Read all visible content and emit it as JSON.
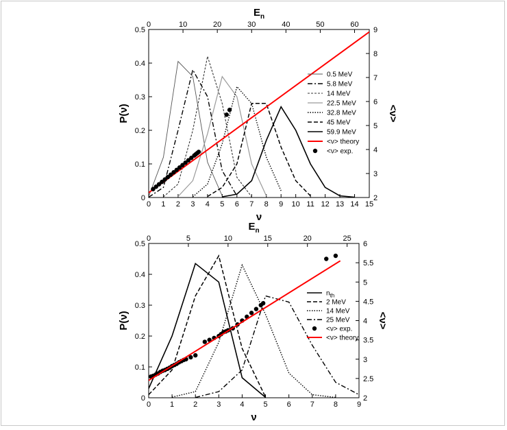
{
  "chart_data": [
    {
      "type": "line",
      "id": "top",
      "xlabel": "ν",
      "ylabel": "P(ν)",
      "x2label": "E",
      "x2label_sub": "n",
      "y2label": "<ν>",
      "xlim": [
        0,
        15
      ],
      "ylim": [
        0,
        0.5
      ],
      "x2lim": [
        0,
        64.29
      ],
      "y2lim": [
        2,
        9
      ],
      "xticks": [
        0,
        1,
        2,
        3,
        4,
        5,
        6,
        7,
        8,
        9,
        10,
        11,
        12,
        13,
        14,
        15
      ],
      "yticks": [
        0,
        0.1,
        0.2,
        0.3,
        0.4,
        0.5
      ],
      "x2ticks": [
        0,
        10,
        20,
        30,
        40,
        50,
        60
      ],
      "y2ticks": [
        2,
        3,
        4,
        5,
        6,
        7,
        8,
        9
      ],
      "legend": "right",
      "series": [
        {
          "name": "0.5 MeV",
          "style": "thin",
          "x": [
            0,
            1,
            2,
            3,
            4,
            5
          ],
          "y": [
            0.003,
            0.12,
            0.405,
            0.36,
            0.105,
            0.005
          ]
        },
        {
          "name": "5.8 MeV",
          "style": "dashdot",
          "x": [
            0,
            1,
            2,
            3,
            4,
            5,
            6
          ],
          "y": [
            0.001,
            0.03,
            0.2,
            0.38,
            0.3,
            0.08,
            0.005
          ]
        },
        {
          "name": "14 MeV",
          "style": "dashed",
          "x": [
            1,
            2,
            3,
            4,
            5,
            6,
            7
          ],
          "y": [
            0.002,
            0.04,
            0.2,
            0.42,
            0.28,
            0.06,
            0.002
          ]
        },
        {
          "name": "22.5 MeV",
          "style": "gray",
          "x": [
            2,
            3,
            4,
            5,
            6,
            7,
            8
          ],
          "y": [
            0.003,
            0.05,
            0.19,
            0.36,
            0.3,
            0.1,
            0.005
          ]
        },
        {
          "name": "32.8 MeV",
          "style": "dotted",
          "x": [
            3,
            4,
            5,
            6,
            7,
            8,
            9
          ],
          "y": [
            0.002,
            0.04,
            0.16,
            0.33,
            0.28,
            0.12,
            0.02
          ]
        },
        {
          "name": "45 MeV",
          "style": "longdash",
          "x": [
            4,
            5,
            6,
            7,
            8,
            9,
            10,
            11
          ],
          "y": [
            0.003,
            0.03,
            0.1,
            0.28,
            0.28,
            0.15,
            0.05,
            0.005
          ]
        },
        {
          "name": "59.9 MeV",
          "style": "solid",
          "x": [
            5,
            6,
            7,
            8,
            9,
            10,
            11,
            12,
            13,
            14
          ],
          "y": [
            0.002,
            0.01,
            0.05,
            0.17,
            0.27,
            0.2,
            0.1,
            0.03,
            0.005,
            0.001
          ]
        },
        {
          "name": "<ν> theory",
          "style": "red",
          "axis": "secondary",
          "x": [
            0,
            15
          ],
          "y": [
            2.2,
            8.9
          ]
        },
        {
          "name": "<ν> exp.",
          "style": "markers",
          "axis": "secondary",
          "x": [
            0.3,
            0.5,
            0.7,
            0.9,
            1.1,
            1.3,
            1.5,
            1.7,
            1.9,
            2.1,
            2.3,
            2.5,
            2.7,
            2.9,
            3.1,
            3.2,
            3.3,
            3.4,
            5.3,
            5.5
          ],
          "y": [
            2.35,
            2.45,
            2.55,
            2.65,
            2.75,
            2.85,
            2.95,
            3.05,
            3.15,
            3.25,
            3.35,
            3.45,
            3.55,
            3.65,
            3.75,
            3.8,
            3.85,
            3.9,
            5.45,
            5.65
          ]
        }
      ]
    },
    {
      "type": "line",
      "id": "bottom",
      "xlabel": "ν",
      "ylabel": "P(ν)",
      "x2label": "E",
      "x2label_sub": "n",
      "y2label": "<ν>",
      "xlim": [
        0,
        9
      ],
      "ylim": [
        0,
        0.5
      ],
      "x2lim": [
        0,
        26.5
      ],
      "y2lim": [
        2,
        6
      ],
      "xticks": [
        0,
        1,
        2,
        3,
        4,
        5,
        6,
        7,
        8,
        9
      ],
      "yticks": [
        0,
        0.1,
        0.2,
        0.3,
        0.4,
        0.5
      ],
      "x2ticks": [
        0,
        5,
        10,
        15,
        20,
        25
      ],
      "y2ticks": [
        2,
        2.5,
        3,
        3.5,
        4,
        4.5,
        5,
        5.5,
        6
      ],
      "legend": "right",
      "series": [
        {
          "name": "n",
          "name_sub": "th",
          "style": "solid",
          "x": [
            0,
            1,
            2,
            3,
            4,
            5
          ],
          "y": [
            0.03,
            0.2,
            0.435,
            0.375,
            0.065,
            0.001
          ]
        },
        {
          "name": "2 MeV",
          "style": "longdash",
          "x": [
            0,
            1,
            2,
            3,
            4,
            5
          ],
          "y": [
            0.01,
            0.09,
            0.33,
            0.46,
            0.16,
            0.002
          ]
        },
        {
          "name": "14 MeV",
          "style": "dotted",
          "x": [
            1,
            2,
            3,
            4,
            5,
            6,
            7,
            8
          ],
          "y": [
            0.002,
            0.02,
            0.18,
            0.43,
            0.27,
            0.08,
            0.01,
            0.001
          ]
        },
        {
          "name": "25 MeV",
          "style": "dashdot",
          "x": [
            2,
            3,
            4,
            5,
            6,
            7,
            8,
            9
          ],
          "y": [
            0.001,
            0.02,
            0.09,
            0.33,
            0.31,
            0.17,
            0.05,
            0.01
          ]
        },
        {
          "name": "<ν> exp.",
          "style": "markers",
          "axis": "secondary",
          "x": [
            0.1,
            0.2,
            0.3,
            0.4,
            0.5,
            0.6,
            0.7,
            0.8,
            0.9,
            1.0,
            1.1,
            1.2,
            1.3,
            1.4,
            1.5,
            1.6,
            1.8,
            2.0,
            2.4,
            2.6,
            2.8,
            3.0,
            3.1,
            3.2,
            3.3,
            3.4,
            3.6,
            3.8,
            4.0,
            4.2,
            4.4,
            4.6,
            4.8,
            4.9,
            7.6,
            8.0
          ],
          "y": [
            2.55,
            2.57,
            2.6,
            2.63,
            2.67,
            2.7,
            2.72,
            2.75,
            2.78,
            2.82,
            2.85,
            2.88,
            2.92,
            2.95,
            2.98,
            3.0,
            3.05,
            3.1,
            3.45,
            3.5,
            3.55,
            3.6,
            3.65,
            3.7,
            3.72,
            3.75,
            3.8,
            3.9,
            4.0,
            4.1,
            4.2,
            4.3,
            4.4,
            4.45,
            5.6,
            5.68
          ]
        },
        {
          "name": "<ν> theory",
          "style": "red",
          "axis": "secondary",
          "x": [
            0,
            8.2
          ],
          "y": [
            2.45,
            5.55
          ]
        }
      ]
    }
  ]
}
